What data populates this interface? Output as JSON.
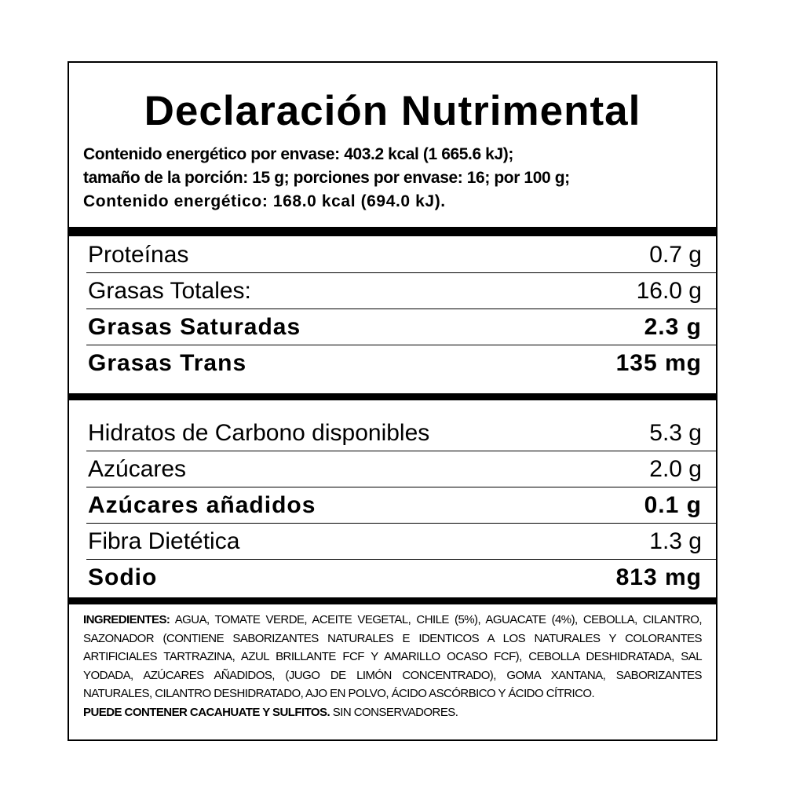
{
  "title": "Declaración Nutrimental",
  "energy": {
    "line1": "Contenido energético por envase: 403.2 kcal (1 665.6 kJ);",
    "line2": "tamaño de la porción: 15 g; porciones por envase: 16; por 100 g;",
    "line3": "Contenido energético: 168.0 kcal (694.0 kJ)."
  },
  "group1": [
    {
      "name": "Proteínas",
      "value": "0.7 g",
      "bold": false
    },
    {
      "name": "Grasas Totales:",
      "value": "16.0 g",
      "bold": false
    },
    {
      "name": "Grasas Saturadas",
      "value": "2.3 g",
      "bold": true
    },
    {
      "name": "Grasas Trans",
      "value": "135 mg",
      "bold": true
    }
  ],
  "group2": [
    {
      "name": "Hidratos de Carbono disponibles",
      "value": "5.3 g",
      "bold": false
    },
    {
      "name": "Azúcares",
      "value": "2.0 g",
      "bold": false
    },
    {
      "name": "Azúcares añadidos",
      "value": "0.1 g",
      "bold": true
    },
    {
      "name": "Fibra Dietética",
      "value": "1.3 g",
      "bold": false
    },
    {
      "name": "Sodio",
      "value": "813 mg",
      "bold": true
    }
  ],
  "ingredients": {
    "label": "INGREDIENTES:",
    "text": "AGUA, TOMATE VERDE, ACEITE VEGETAL, CHILE (5%), AGUACATE (4%), CEBOLLA, CILANTRO, SAZONADOR (CONTIENE SABORIZANTES NATURALES E IDENTICOS A LOS NATURALES Y COLORANTES ARTIFICIALES TARTRAZINA, AZUL BRILLANTE FCF Y AMARILLO OCASO FCF), CEBOLLA DESHIDRATADA, SAL YODADA, AZÚCARES AÑADIDOS, (JUGO DE LIMÓN CONCENTRADO), GOMA XANTANA, SABORIZANTES NATURALES, CILANTRO DESHIDRATADO, AJO EN POLVO, ÁCIDO ASCÓRBICO Y ÁCIDO CÍTRICO.",
    "warning": "PUEDE CONTENER CACAHUATE Y SULFITOS.",
    "note": "SIN CONSERVADORES."
  }
}
